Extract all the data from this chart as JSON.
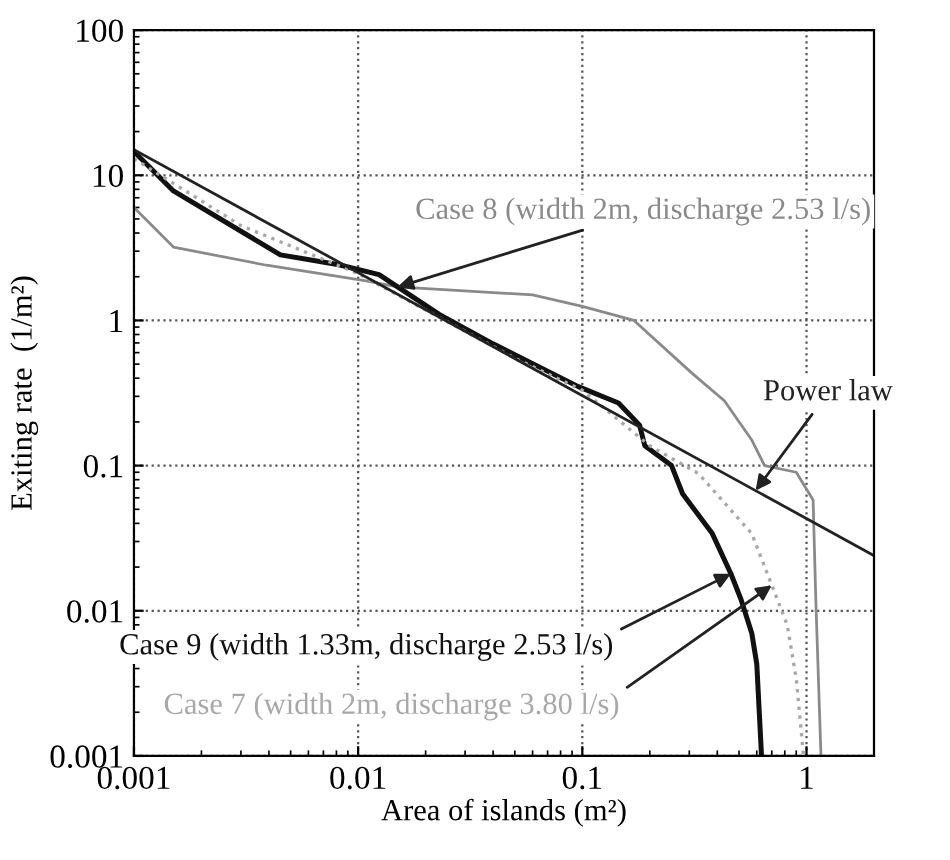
{
  "chart_data": {
    "type": "line",
    "xlabel": "Area of islands (m²)",
    "ylabel": "Exiting rate  (1/m²)",
    "log": "xy",
    "xlim": [
      0.001,
      2
    ],
    "ylim": [
      0.001,
      100
    ],
    "xticks": [
      0.001,
      0.01,
      0.1,
      1
    ],
    "yticks": [
      0.001,
      0.01,
      0.1,
      1,
      10,
      100
    ],
    "grid": true,
    "line_style": "solid",
    "marker": "none",
    "series": [
      {
        "name": "Case 8 (width 2m, discharge 2.53 l/s)",
        "color": "#8a8a8a",
        "x": [
          0.001,
          0.0015,
          0.0039,
          0.0107,
          0.015,
          0.06,
          0.1,
          0.17,
          0.31,
          0.43,
          0.57,
          0.65,
          0.9,
          1.07,
          1.1,
          1.16
        ],
        "values": [
          6.0,
          3.2,
          2.4,
          1.88,
          1.7,
          1.5,
          1.25,
          1.0,
          0.43,
          0.28,
          0.15,
          0.1,
          0.09,
          0.058,
          0.012,
          0.001
        ]
      },
      {
        "name": "Case 9 (width 1.33m, discharge 2.53 l/s)",
        "color": "#111111",
        "x": [
          0.001,
          0.0015,
          0.0045,
          0.0082,
          0.0124,
          0.023,
          0.04,
          0.096,
          0.145,
          0.18,
          0.19,
          0.25,
          0.28,
          0.38,
          0.46,
          0.51,
          0.57,
          0.6,
          0.63
        ],
        "values": [
          14.6,
          7.8,
          2.83,
          2.42,
          2.07,
          1.1,
          0.69,
          0.35,
          0.27,
          0.19,
          0.137,
          0.1,
          0.064,
          0.034,
          0.018,
          0.012,
          0.007,
          0.0043,
          0.001
        ]
      },
      {
        "name": "Case 7 (width 2m, discharge 3.80 l/s)",
        "color": "#a8a8a8",
        "line_style": "dotted",
        "x": [
          0.001,
          0.003,
          0.01,
          0.05,
          0.1,
          0.2,
          0.33,
          0.57,
          0.7,
          0.82,
          0.9,
          0.97
        ],
        "values": [
          13,
          4.5,
          2.1,
          0.55,
          0.33,
          0.137,
          0.088,
          0.034,
          0.015,
          0.008,
          0.0034,
          0.001
        ]
      },
      {
        "name": "Power law",
        "color": "#222222",
        "x": [
          0.001,
          2
        ],
        "values": [
          15,
          0.024
        ]
      }
    ]
  }
}
